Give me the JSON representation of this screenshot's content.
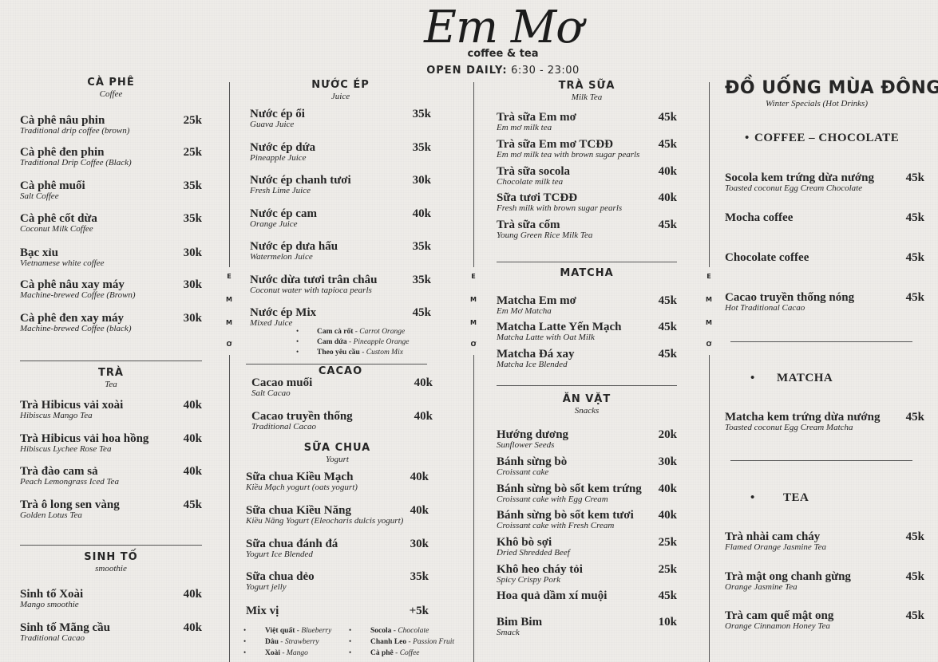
{
  "header": {
    "logo": "Em Mơ",
    "tagline": "coffee & tea",
    "hours_label": "OPEN DAILY:",
    "hours": "6:30 - 23:00"
  },
  "side_letters": [
    "E",
    "M",
    "M",
    "Ơ"
  ],
  "columns": [
    {
      "sections": [
        {
          "title": "CÀ PHÊ",
          "subtitle": "Coffee",
          "items": [
            {
              "name": "Cà phê nâu phin",
              "desc": "Traditional drip coffee (brown)",
              "price": "25k"
            },
            {
              "name": "Cà phê đen phin",
              "desc": "Traditional Drip Coffee (Black)",
              "price": "25k"
            },
            {
              "name": "Cà phê muối",
              "desc": "Salt Coffee",
              "price": "35k"
            },
            {
              "name": "Cà phê cốt dừa",
              "desc": "Coconut Milk Coffee",
              "price": "35k"
            },
            {
              "name": "Bạc xỉu",
              "desc": "Vietnamese white coffee",
              "price": "30k"
            },
            {
              "name": "Cà phê nâu xay máy",
              "desc": "Machine-brewed Coffee (Brown)",
              "price": "30k"
            },
            {
              "name": "Cà phê đen xay máy",
              "desc": "Machine-brewed Coffee (black)",
              "price": "30k"
            }
          ]
        },
        {
          "title": "TRÀ",
          "subtitle": "Tea",
          "items": [
            {
              "name": "Trà Hibicus vải xoài",
              "desc": "Hibiscus Mango Tea",
              "price": "40k"
            },
            {
              "name": "Trà Hibicus vải hoa hồng",
              "desc": "Hibiscus Lychee Rose Tea",
              "price": "40k"
            },
            {
              "name": "Trà đào cam sả",
              "desc": "Peach Lemongrass Iced Tea",
              "price": "40k"
            },
            {
              "name": "Trà ô long sen vàng",
              "desc": "Golden Lotus Tea",
              "price": "45k"
            }
          ]
        },
        {
          "title": "SINH TỐ",
          "subtitle": "smoothie",
          "items": [
            {
              "name": "Sinh tố Xoài",
              "desc": "Mango smoothie",
              "price": "40k"
            },
            {
              "name": "Sinh tố Mãng cầu",
              "desc": "Traditional Cacao",
              "price": "40k"
            }
          ]
        }
      ]
    },
    {
      "sections": [
        {
          "title": "NƯỚC ÉP",
          "subtitle": "Juice",
          "items": [
            {
              "name": "Nước ép ổi",
              "desc": "Guava Juice",
              "price": "35k"
            },
            {
              "name": "Nước ép dứa",
              "desc": "Pineapple Juice",
              "price": "35k"
            },
            {
              "name": "Nước ép chanh tươi",
              "desc": "Fresh Lime Juice",
              "price": "30k"
            },
            {
              "name": "Nước ép cam",
              "desc": "Orange Juice",
              "price": "40k"
            },
            {
              "name": "Nước ép dưa hấu",
              "desc": "Watermelon Juice",
              "price": "35k"
            },
            {
              "name": "Nước dừa tươi trân châu",
              "desc": "Coconut water with tapioca pearls",
              "price": "35k"
            },
            {
              "name": "Nước ép Mix",
              "desc": "Mixed Juice",
              "price": "45k"
            }
          ],
          "extras": [
            {
              "vi": "Cam cà rốt",
              "en": "Carrot Orange"
            },
            {
              "vi": "Cam dứa",
              "en": "Pineapple Orange"
            },
            {
              "vi": "Theo yêu cầu",
              "en": "Custom Mix"
            }
          ]
        },
        {
          "title": "CACAO",
          "subtitle": "",
          "items": [
            {
              "name": "Cacao muối",
              "desc": "Salt Cacao",
              "price": "40k"
            },
            {
              "name": "Cacao truyền thống",
              "desc": "Traditional Cacao",
              "price": "40k"
            }
          ]
        },
        {
          "title": "SỮA CHUA",
          "subtitle": "Yogurt",
          "items": [
            {
              "name": "Sữa chua Kiều Mạch",
              "desc": "Kiều Mạch yogurt (oats yogurt)",
              "price": "40k"
            },
            {
              "name": "Sữa chua Kiều Năng",
              "desc": "Kiều Năng Yogurt (Eleocharis dulcis yogurt)",
              "price": "40k"
            },
            {
              "name": "Sữa chua đánh đá",
              "desc": "Yogurt Ice Blended",
              "price": "30k"
            },
            {
              "name": "Sữa chua dẻo",
              "desc": "Yogurt jelly",
              "price": "35k"
            },
            {
              "name": "Mix vị",
              "desc": "",
              "price": "+5k"
            }
          ],
          "extras": [
            {
              "vi": "Việt quất",
              "en": "Blueberry"
            },
            {
              "vi": "Dâu",
              "en": "Strawberry"
            },
            {
              "vi": "Xoài",
              "en": "Mango"
            },
            {
              "vi": "Socola",
              "en": "Chocolate"
            },
            {
              "vi": "Chanh Leo",
              "en": "Passion Fruit"
            },
            {
              "vi": "Cà phê",
              "en": "Coffee"
            }
          ]
        }
      ]
    },
    {
      "sections": [
        {
          "title": "TRÀ SỮA",
          "subtitle": "Milk Tea",
          "items": [
            {
              "name": "Trà sữa Em mơ",
              "desc": "Em mơ milk tea",
              "price": "45k"
            },
            {
              "name": "Trà sữa Em mơ TCĐĐ",
              "desc": "Em mơ milk tea with brown sugar pearls",
              "price": "45k"
            },
            {
              "name": "Trà sữa socola",
              "desc": "Chocolate milk tea",
              "price": "40k"
            },
            {
              "name": "Sữa tươi TCĐĐ",
              "desc": "Fresh milk with brown sugar pearls",
              "price": "40k"
            },
            {
              "name": "Trà sữa cốm",
              "desc": "Young Green Rice Milk Tea",
              "price": "45k"
            }
          ]
        },
        {
          "title": "MATCHA",
          "subtitle": "",
          "items": [
            {
              "name": "Matcha Em mơ",
              "desc": "Em Mơ Matcha",
              "price": "45k"
            },
            {
              "name": "Matcha Latte Yến Mạch",
              "desc": "Matcha Latte with Oat Milk",
              "price": "45k"
            },
            {
              "name": "Matcha Đá xay",
              "desc": "Matcha Ice Blended",
              "price": "45k"
            }
          ]
        },
        {
          "title": "ĂN VẶT",
          "subtitle": "Snacks",
          "items": [
            {
              "name": "Hướng dương",
              "desc": "Sunflower Seeds",
              "price": "20k"
            },
            {
              "name": "Bánh sừng bò",
              "desc": "Croissant cake",
              "price": "30k"
            },
            {
              "name": "Bánh sừng bò sốt kem trứng",
              "desc": "Croissant cake with Egg Cream",
              "price": "40k"
            },
            {
              "name": "Bánh sừng bò sốt kem tươi",
              "desc": "Croissant cake with Fresh Cream",
              "price": "40k"
            },
            {
              "name": "Khô bò sợi",
              "desc": "Dried Shredded Beef",
              "price": "25k"
            },
            {
              "name": "Khô heo cháy tỏi",
              "desc": "Spicy Crispy Pork",
              "price": "25k"
            },
            {
              "name": "Hoa quả dầm xí muội",
              "desc": "",
              "price": "45k"
            },
            {
              "name": "Bim Bim",
              "desc": "Smack",
              "price": "10k"
            }
          ]
        }
      ]
    },
    {
      "title": "ĐỒ UỐNG MÙA ĐÔNG",
      "subtitle": "Winter Specials (Hot Drinks)",
      "sections": [
        {
          "title": "COFFEE – CHOCOLATE",
          "items": [
            {
              "name": "Socola kem trứng dừa nướng",
              "desc": "Toasted coconut Egg Cream Chocolate",
              "price": "45k"
            },
            {
              "name": "Mocha coffee",
              "desc": "",
              "price": "45k"
            },
            {
              "name": "Chocolate coffee",
              "desc": "",
              "price": "45k"
            },
            {
              "name": "Cacao truyền thống nóng",
              "desc": "Hot Traditional Cacao",
              "price": "45k"
            }
          ]
        },
        {
          "title": "MATCHA",
          "items": [
            {
              "name": "Matcha kem trứng dừa nướng",
              "desc": "Toasted coconut Egg Cream Matcha",
              "price": "45k"
            }
          ]
        },
        {
          "title": "TEA",
          "items": [
            {
              "name": "Trà nhài cam cháy",
              "desc": "Flamed Orange Jasmine Tea",
              "price": "45k"
            },
            {
              "name": "Trà mật ong chanh gừng",
              "desc": "Orange Jasmine Tea",
              "price": "45k"
            },
            {
              "name": "Trà cam quế mật ong",
              "desc": "Orange Cinnamon Honey Tea",
              "price": "45k"
            }
          ]
        }
      ]
    }
  ]
}
